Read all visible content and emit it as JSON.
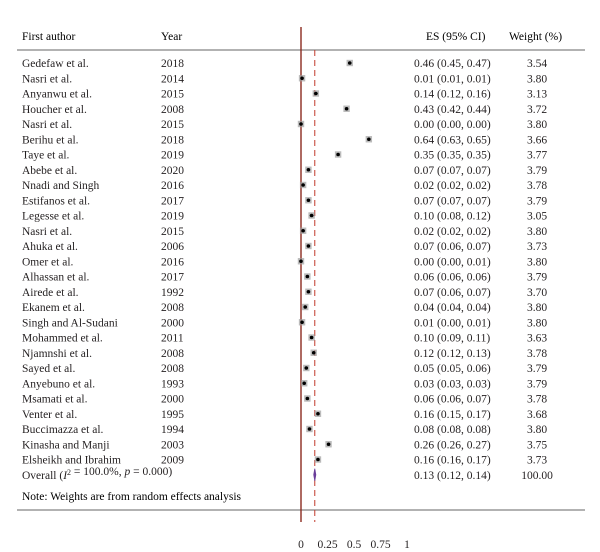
{
  "chart_data": {
    "type": "forest",
    "columns": {
      "author": "First author",
      "year": "Year",
      "es": "ES (95% CI)",
      "weight": "Weight (%)"
    },
    "studies": [
      {
        "author": "Gedefaw et al.",
        "year": "2018",
        "es": 0.46,
        "lo": 0.45,
        "hi": 0.47,
        "es_text": "0.46 (0.45, 0.47)",
        "weight": "3.54"
      },
      {
        "author": "Nasri et al.",
        "year": "2014",
        "es": 0.01,
        "lo": 0.01,
        "hi": 0.01,
        "es_text": "0.01 (0.01, 0.01)",
        "weight": "3.80"
      },
      {
        "author": "Anyanwu et al.",
        "year": "2015",
        "es": 0.14,
        "lo": 0.12,
        "hi": 0.16,
        "es_text": "0.14 (0.12, 0.16)",
        "weight": "3.13"
      },
      {
        "author": "Houcher et al.",
        "year": "2008",
        "es": 0.43,
        "lo": 0.42,
        "hi": 0.44,
        "es_text": "0.43 (0.42, 0.44)",
        "weight": "3.72"
      },
      {
        "author": "Nasri et al.",
        "year": "2015",
        "es": 0.0,
        "lo": 0.0,
        "hi": 0.0,
        "es_text": "0.00 (0.00, 0.00)",
        "weight": "3.80"
      },
      {
        "author": "Berihu et al.",
        "year": "2018",
        "es": 0.64,
        "lo": 0.63,
        "hi": 0.65,
        "es_text": "0.64 (0.63, 0.65)",
        "weight": "3.66"
      },
      {
        "author": "Taye et al.",
        "year": "2019",
        "es": 0.35,
        "lo": 0.35,
        "hi": 0.35,
        "es_text": "0.35 (0.35, 0.35)",
        "weight": "3.77"
      },
      {
        "author": "Abebe et al.",
        "year": "2020",
        "es": 0.07,
        "lo": 0.07,
        "hi": 0.07,
        "es_text": "0.07 (0.07, 0.07)",
        "weight": "3.79"
      },
      {
        "author": "Nnadi and Singh",
        "year": "2016",
        "es": 0.02,
        "lo": 0.02,
        "hi": 0.02,
        "es_text": "0.02 (0.02, 0.02)",
        "weight": "3.78"
      },
      {
        "author": "Estifanos et al.",
        "year": "2017",
        "es": 0.07,
        "lo": 0.07,
        "hi": 0.07,
        "es_text": "0.07 (0.07, 0.07)",
        "weight": "3.79"
      },
      {
        "author": "Legesse et al.",
        "year": "2019",
        "es": 0.1,
        "lo": 0.08,
        "hi": 0.12,
        "es_text": "0.10 (0.08, 0.12)",
        "weight": "3.05"
      },
      {
        "author": "Nasri et al.",
        "year": "2015",
        "es": 0.02,
        "lo": 0.02,
        "hi": 0.02,
        "es_text": "0.02 (0.02, 0.02)",
        "weight": "3.80"
      },
      {
        "author": "Ahuka et al.",
        "year": "2006",
        "es": 0.07,
        "lo": 0.06,
        "hi": 0.07,
        "es_text": "0.07 (0.06, 0.07)",
        "weight": "3.73"
      },
      {
        "author": "Omer et al.",
        "year": "2016",
        "es": 0.0,
        "lo": 0.0,
        "hi": 0.01,
        "es_text": "0.00 (0.00, 0.01)",
        "weight": "3.80"
      },
      {
        "author": "Alhassan et al.",
        "year": "2017",
        "es": 0.06,
        "lo": 0.06,
        "hi": 0.06,
        "es_text": "0.06 (0.06, 0.06)",
        "weight": "3.79"
      },
      {
        "author": "Airede et al.",
        "year": "1992",
        "es": 0.07,
        "lo": 0.06,
        "hi": 0.07,
        "es_text": "0.07 (0.06, 0.07)",
        "weight": "3.70"
      },
      {
        "author": "Ekanem et al.",
        "year": "2008",
        "es": 0.04,
        "lo": 0.04,
        "hi": 0.04,
        "es_text": "0.04 (0.04, 0.04)",
        "weight": "3.80"
      },
      {
        "author": "Singh and Al-Sudani",
        "year": "2000",
        "es": 0.01,
        "lo": 0.0,
        "hi": 0.01,
        "es_text": "0.01 (0.00, 0.01)",
        "weight": "3.80"
      },
      {
        "author": "Mohammed et al.",
        "year": "2011",
        "es": 0.1,
        "lo": 0.09,
        "hi": 0.11,
        "es_text": "0.10 (0.09, 0.11)",
        "weight": "3.63"
      },
      {
        "author": "Njamnshi et al.",
        "year": "2008",
        "es": 0.12,
        "lo": 0.12,
        "hi": 0.13,
        "es_text": "0.12 (0.12, 0.13)",
        "weight": "3.78"
      },
      {
        "author": "Sayed et al.",
        "year": "2008",
        "es": 0.05,
        "lo": 0.05,
        "hi": 0.06,
        "es_text": "0.05 (0.05, 0.06)",
        "weight": "3.79"
      },
      {
        "author": "Anyebuno et al.",
        "year": "1993",
        "es": 0.03,
        "lo": 0.03,
        "hi": 0.03,
        "es_text": "0.03 (0.03, 0.03)",
        "weight": "3.79"
      },
      {
        "author": "Msamati et al.",
        "year": "2000",
        "es": 0.06,
        "lo": 0.06,
        "hi": 0.07,
        "es_text": "0.06 (0.06, 0.07)",
        "weight": "3.78"
      },
      {
        "author": "Venter et al.",
        "year": "1995",
        "es": 0.16,
        "lo": 0.15,
        "hi": 0.17,
        "es_text": "0.16 (0.15, 0.17)",
        "weight": "3.68"
      },
      {
        "author": "Buccimazza et al.",
        "year": "1994",
        "es": 0.08,
        "lo": 0.08,
        "hi": 0.08,
        "es_text": "0.08 (0.08, 0.08)",
        "weight": "3.80"
      },
      {
        "author": "Kinasha and Manji",
        "year": "2003",
        "es": 0.26,
        "lo": 0.26,
        "hi": 0.27,
        "es_text": "0.26 (0.26, 0.27)",
        "weight": "3.75"
      },
      {
        "author": "Elsheikh and Ibrahim",
        "year": "2009",
        "es": 0.16,
        "lo": 0.16,
        "hi": 0.17,
        "es_text": "0.16 (0.16, 0.17)",
        "weight": "3.73"
      }
    ],
    "overall": {
      "label_pre": "Overall (",
      "label_i": "I",
      "label_sup": "2",
      "label_mid": " = 100.0%, ",
      "label_p": "p",
      "label_post": " = 0.000)",
      "es": 0.13,
      "lo": 0.12,
      "hi": 0.14,
      "es_text": "0.13 (0.12, 0.14)",
      "weight": "100.00"
    },
    "note": "Note: Weights are from random effects analysis",
    "x_ticks": [
      0,
      0.25,
      0.5,
      0.75,
      1
    ],
    "x_tick_labels": [
      "0",
      "0.25",
      "0.5",
      "0.75",
      "1"
    ],
    "xlim": [
      0,
      1
    ],
    "null_line": 0,
    "colors": {
      "text": "#231f20",
      "null_line": "#8b2b1f",
      "overall_line": "#c0392b",
      "diamond": "#6a3d9a",
      "marker": "#000000",
      "marker_box": "#9e9e9e",
      "rule": "#333333"
    }
  }
}
